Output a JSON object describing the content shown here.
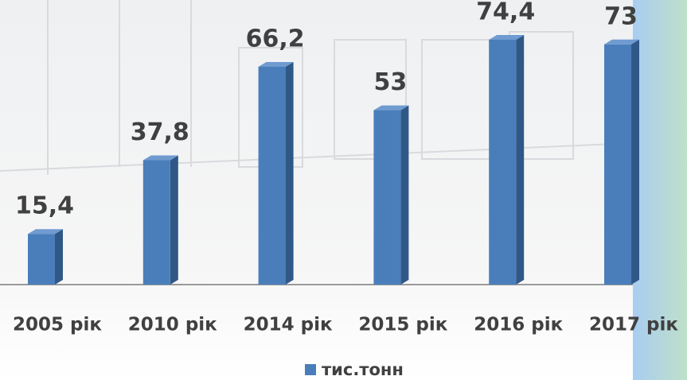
{
  "chart_data": {
    "type": "bar3d",
    "categories": [
      "2005 рік",
      "2010 рік",
      "2014 рік",
      "2015 рік",
      "2016 рік",
      "2017 рік"
    ],
    "series": [
      {
        "name": "тис.тонн",
        "color": "#4a7ebb",
        "values": [
          15.4,
          37.8,
          66.2,
          53,
          74.4,
          73
        ],
        "value_labels": [
          "15,4",
          "37,8",
          "66,2",
          "53",
          "74,4",
          "73"
        ]
      }
    ]
  }
}
